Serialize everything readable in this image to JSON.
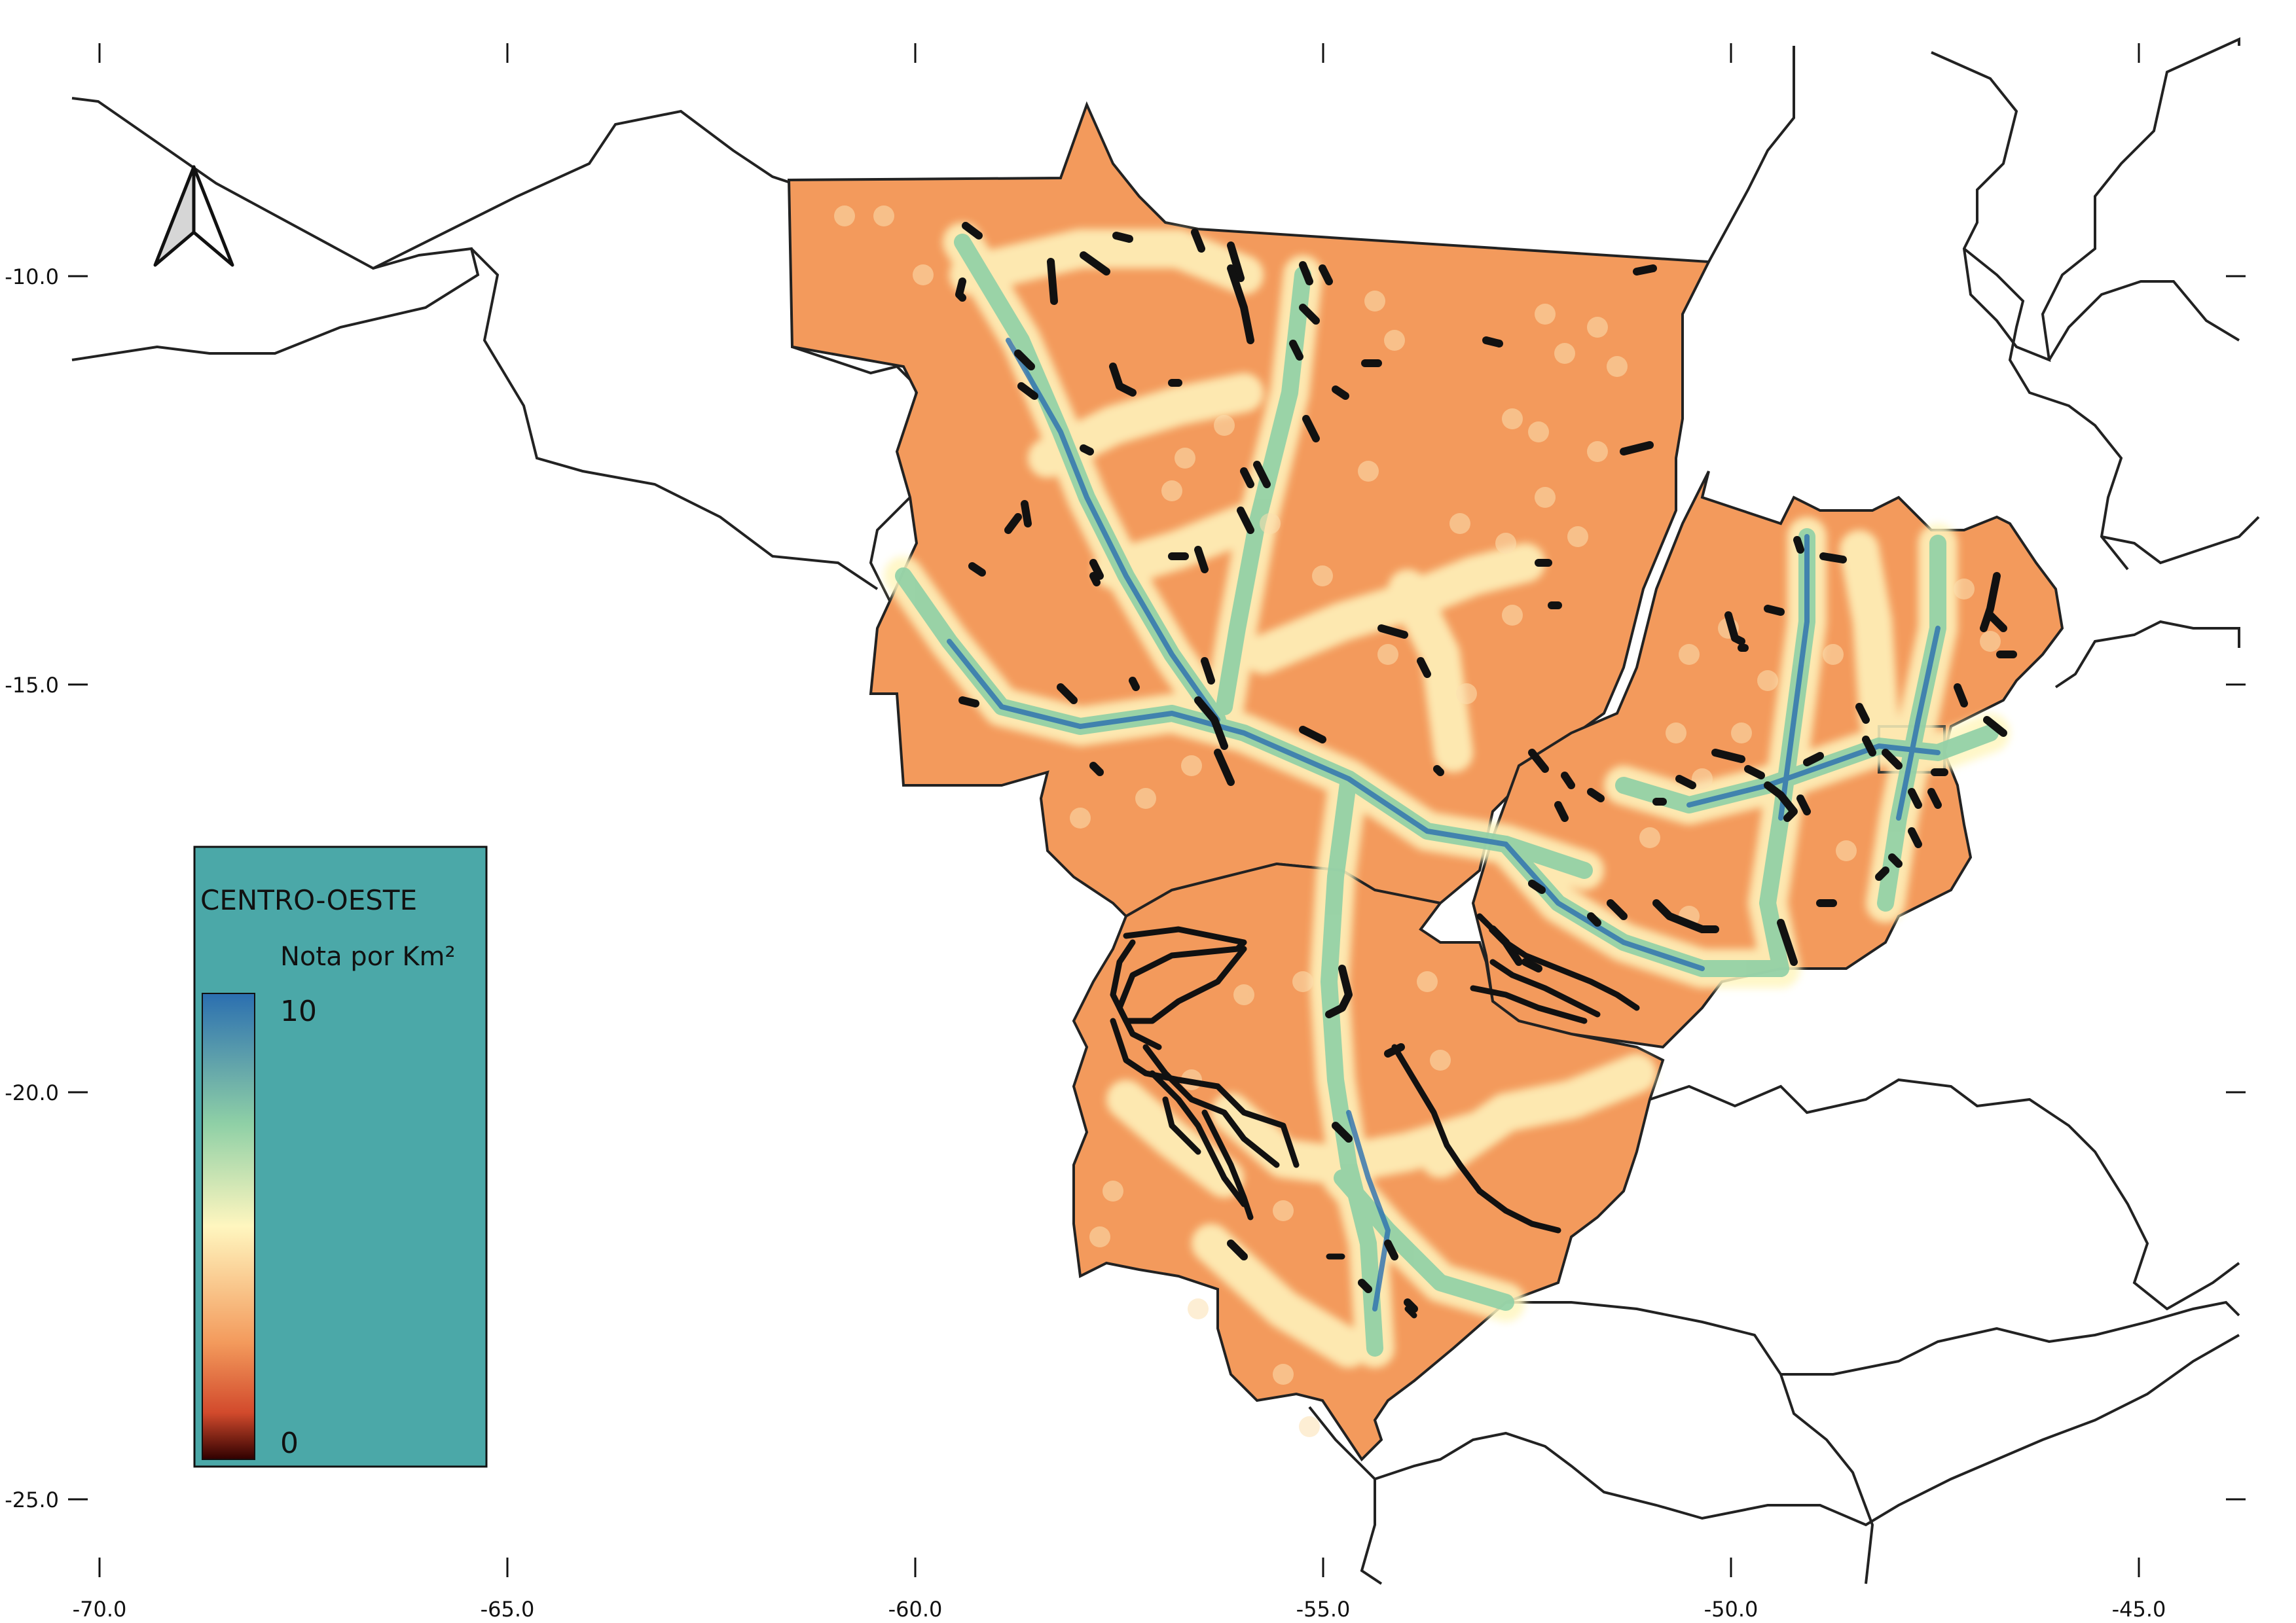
{
  "x_axis": {
    "ticks": [
      "-70.0",
      "-65.0",
      "-60.0",
      "-55.0",
      "-50.0",
      "-45.0"
    ]
  },
  "y_axis": {
    "ticks": [
      "-10.0",
      "-15.0",
      "-20.0",
      "-25.0"
    ]
  },
  "legend": {
    "title": "CENTRO-OESTE",
    "subtitle": "Nota por Km²",
    "max_label": "10",
    "min_label": "0",
    "background": "#4ba8a8"
  },
  "colors": {
    "region_fill": "#f39a5c",
    "high": "#2b6fb0",
    "mid": "#8fd0a6",
    "low_mid": "#fff6bf",
    "low": "#f08a4e",
    "zero": "#300000",
    "borders": "#222222",
    "roads": "#111111"
  },
  "icons": {
    "north_arrow": "north-arrow-icon"
  }
}
